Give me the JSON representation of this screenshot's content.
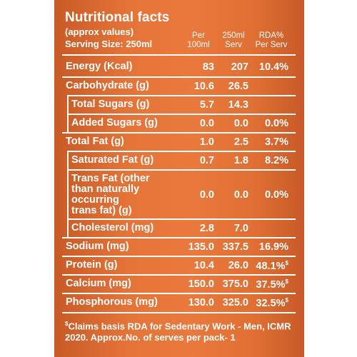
{
  "header": {
    "title": "Nutritional facts",
    "approx": "(approx values)",
    "serving": "Serving Size: 250ml"
  },
  "columns": {
    "per100_l1": "Per",
    "per100_l2": "100ml",
    "serv_l1": "250ml",
    "serv_l2": "Serv",
    "rda_l1": "RDA%",
    "rda_l2": "Per Serv"
  },
  "rows": [
    {
      "label": "Energy (Kcal)",
      "per100": "83",
      "serv": "207",
      "rda": "10.4%",
      "mark": ""
    },
    {
      "label": "Carbohydrate (g)",
      "per100": "10.6",
      "serv": "26.5",
      "rda": "",
      "mark": ""
    },
    {
      "label": "Total Sugars (g)",
      "per100": "5.7",
      "serv": "14.3",
      "rda": "",
      "mark": ""
    },
    {
      "label": "Added Sugars (g)",
      "per100": "0.0",
      "serv": "0.0",
      "rda": "0.0%",
      "mark": ""
    },
    {
      "label": "Total Fat (g)",
      "per100": "1.0",
      "serv": "2.5",
      "rda": "3.7%",
      "mark": ""
    },
    {
      "label": "Saturated Fat (g)",
      "per100": "0.7",
      "serv": "1.8",
      "rda": "8.2%",
      "mark": ""
    },
    {
      "label": "Trans Fat (other than naturally occurring trans fat) (g)",
      "l1": "Trans Fat (other",
      "l2": "than naturally",
      "l3": "occurring",
      "l4": "trans fat) (g)",
      "per100": "0.0",
      "serv": "0.0",
      "rda": "0.0%",
      "mark": ""
    },
    {
      "label": "Cholesterol (mg)",
      "per100": "2.8",
      "serv": "7.0",
      "rda": "",
      "mark": ""
    },
    {
      "label": "Sodium (mg)",
      "per100": "135.0",
      "serv": "337.5",
      "rda": "16.9%",
      "mark": ""
    },
    {
      "label": "Protein (g)",
      "per100": "10.4",
      "serv": "26.0",
      "rda": "48.1%",
      "mark": "$"
    },
    {
      "label": "Calcium (mg)",
      "per100": "150.0",
      "serv": "375.0",
      "rda": "37.5%",
      "mark": "$"
    },
    {
      "label": "Phosphorous (mg)",
      "per100": "130.0",
      "serv": "325.0",
      "rda": "32.5%",
      "mark": "$"
    }
  ],
  "footnote": {
    "mark": "$",
    "text": "Claims basis RDA for Sedentary Work - Men, ICMR 2020. Approx.No. of serves per pack- 1"
  },
  "colors": {
    "panel": "#e9793d",
    "text": "#ffffff"
  }
}
